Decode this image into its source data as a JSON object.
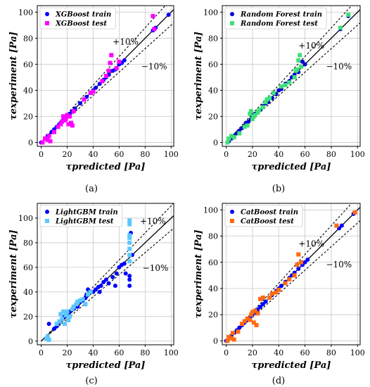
{
  "chart_data": [
    {
      "type": "scatter",
      "panel_label": "(a)",
      "xlabel": "τpredicted [Pa]",
      "ylabel": "τexperiment [Pa]",
      "xlim": [
        -3,
        102
      ],
      "ylim": [
        -3,
        105
      ],
      "xticks": [
        0,
        20,
        40,
        60,
        80,
        100
      ],
      "yticks": [
        0,
        20,
        40,
        60,
        80,
        100
      ],
      "grid": true,
      "legend_position": "top-left",
      "band_labels": [
        "+10%",
        "−10%"
      ],
      "series": [
        {
          "name": "XGBoost train",
          "marker": "circle",
          "color": "#0000ff",
          "points": [
            [
              0,
              0
            ],
            [
              3,
              3
            ],
            [
              5,
              5
            ],
            [
              8,
              8
            ],
            [
              10,
              10
            ],
            [
              12,
              12
            ],
            [
              14,
              14
            ],
            [
              15,
              15
            ],
            [
              17,
              17
            ],
            [
              18,
              18
            ],
            [
              20,
              20
            ],
            [
              22,
              22
            ],
            [
              24,
              24
            ],
            [
              26,
              26
            ],
            [
              30,
              30
            ],
            [
              33,
              33
            ],
            [
              35,
              35
            ],
            [
              38,
              38
            ],
            [
              40,
              40
            ],
            [
              42,
              42
            ],
            [
              45,
              45
            ],
            [
              48,
              48
            ],
            [
              50,
              50
            ],
            [
              52,
              52
            ],
            [
              55,
              55
            ],
            [
              57,
              56
            ],
            [
              60,
              60
            ],
            [
              62,
              61
            ],
            [
              64,
              63
            ],
            [
              86,
              86
            ],
            [
              88,
              88
            ],
            [
              98,
              98
            ]
          ]
        },
        {
          "name": "XGBoost test",
          "marker": "square",
          "color": "#ff00ff",
          "points": [
            [
              1,
              0
            ],
            [
              3,
              3
            ],
            [
              5,
              2
            ],
            [
              6,
              5
            ],
            [
              7,
              1
            ],
            [
              10,
              8
            ],
            [
              13,
              12
            ],
            [
              15,
              14
            ],
            [
              16,
              16
            ],
            [
              17,
              20
            ],
            [
              18,
              17
            ],
            [
              19,
              18
            ],
            [
              20,
              21
            ],
            [
              21,
              14
            ],
            [
              22,
              20
            ],
            [
              23,
              15
            ],
            [
              24,
              13
            ],
            [
              25,
              24
            ],
            [
              33,
              33
            ],
            [
              38,
              38
            ],
            [
              40,
              39
            ],
            [
              47,
              47
            ],
            [
              50,
              51
            ],
            [
              52,
              55
            ],
            [
              53,
              61
            ],
            [
              54,
              67
            ],
            [
              58,
              57
            ],
            [
              60,
              62
            ],
            [
              86,
              97
            ],
            [
              87,
              87
            ]
          ]
        }
      ]
    },
    {
      "type": "scatter",
      "panel_label": "(b)",
      "xlabel": "τpredicted [Pa]",
      "ylabel": "τexperiment [Pa]",
      "xlim": [
        -3,
        102
      ],
      "ylim": [
        -3,
        105
      ],
      "xticks": [
        0,
        20,
        40,
        60,
        80,
        100
      ],
      "yticks": [
        0,
        20,
        40,
        60,
        80,
        100
      ],
      "grid": true,
      "legend_position": "top-left",
      "band_labels": [
        "+10%",
        "−10%"
      ],
      "series": [
        {
          "name": "Random Forest train",
          "marker": "circle",
          "color": "#0000cd",
          "points": [
            [
              2,
              1
            ],
            [
              4,
              3
            ],
            [
              6,
              5
            ],
            [
              8,
              7
            ],
            [
              10,
              9
            ],
            [
              12,
              11
            ],
            [
              14,
              13
            ],
            [
              15,
              15
            ],
            [
              17,
              16
            ],
            [
              19,
              18
            ],
            [
              20,
              21
            ],
            [
              22,
              22
            ],
            [
              24,
              23
            ],
            [
              26,
              25
            ],
            [
              28,
              28
            ],
            [
              30,
              30
            ],
            [
              32,
              31
            ],
            [
              35,
              34
            ],
            [
              38,
              37
            ],
            [
              40,
              40
            ],
            [
              42,
              41
            ],
            [
              45,
              45
            ],
            [
              48,
              47
            ],
            [
              50,
              50
            ],
            [
              52,
              52
            ],
            [
              55,
              54
            ],
            [
              57,
              58
            ],
            [
              58,
              62
            ],
            [
              60,
              60
            ],
            [
              87,
              87
            ],
            [
              93,
              97
            ]
          ]
        },
        {
          "name": "Random Forest test",
          "marker": "square",
          "color": "#3ee07a",
          "points": [
            [
              1,
              0
            ],
            [
              2,
              3
            ],
            [
              4,
              5
            ],
            [
              6,
              4
            ],
            [
              10,
              7
            ],
            [
              14,
              12
            ],
            [
              16,
              13
            ],
            [
              18,
              22
            ],
            [
              19,
              24
            ],
            [
              20,
              18
            ],
            [
              21,
              20
            ],
            [
              22,
              21
            ],
            [
              24,
              23
            ],
            [
              25,
              25
            ],
            [
              28,
              27
            ],
            [
              30,
              31
            ],
            [
              31,
              33
            ],
            [
              33,
              34
            ],
            [
              36,
              38
            ],
            [
              42,
              43
            ],
            [
              45,
              44
            ],
            [
              48,
              46
            ],
            [
              52,
              50
            ],
            [
              53,
              55
            ],
            [
              54,
              56
            ],
            [
              55,
              63
            ],
            [
              56,
              67
            ],
            [
              57,
              58
            ],
            [
              87,
              88
            ],
            [
              93,
              98
            ]
          ]
        }
      ]
    },
    {
      "type": "scatter",
      "panel_label": "(c)",
      "xlabel": "τpredicted [Pa]",
      "ylabel": "τexperiment [Pa]",
      "xlim": [
        -3,
        102
      ],
      "ylim": [
        -3,
        112
      ],
      "xticks": [
        0,
        20,
        40,
        60,
        80,
        100
      ],
      "yticks": [
        0,
        20,
        40,
        60,
        80,
        100
      ],
      "grid": true,
      "legend_position": "top-left",
      "band_labels": [
        "+10%",
        "−10%"
      ],
      "series": [
        {
          "name": "LightGBM train",
          "marker": "circle",
          "color": "#0000ff",
          "points": [
            [
              5,
              3
            ],
            [
              6,
              14
            ],
            [
              10,
              10
            ],
            [
              12,
              12
            ],
            [
              14,
              15
            ],
            [
              18,
              20
            ],
            [
              20,
              22
            ],
            [
              22,
              24
            ],
            [
              25,
              26
            ],
            [
              28,
              28
            ],
            [
              30,
              32
            ],
            [
              32,
              33
            ],
            [
              34,
              35
            ],
            [
              35,
              38
            ],
            [
              36,
              42
            ],
            [
              38,
              40
            ],
            [
              40,
              40
            ],
            [
              42,
              42
            ],
            [
              44,
              44
            ],
            [
              45,
              40
            ],
            [
              46,
              45
            ],
            [
              48,
              48
            ],
            [
              50,
              50
            ],
            [
              52,
              47
            ],
            [
              55,
              52
            ],
            [
              57,
              45
            ],
            [
              58,
              55
            ],
            [
              60,
              60
            ],
            [
              62,
              62
            ],
            [
              64,
              63
            ],
            [
              65,
              55
            ],
            [
              68,
              53
            ],
            [
              68,
              50
            ],
            [
              68,
              45
            ],
            [
              69,
              88
            ],
            [
              70,
              70
            ]
          ]
        },
        {
          "name": "LightGBM test",
          "marker": "square",
          "color": "#5bc8ff",
          "points": [
            [
              4,
              2
            ],
            [
              5,
              4
            ],
            [
              6,
              1
            ],
            [
              12,
              14
            ],
            [
              14,
              16
            ],
            [
              15,
              22
            ],
            [
              16,
              18
            ],
            [
              17,
              24
            ],
            [
              18,
              14
            ],
            [
              19,
              21
            ],
            [
              20,
              24
            ],
            [
              21,
              17
            ],
            [
              22,
              20
            ],
            [
              24,
              26
            ],
            [
              25,
              28
            ],
            [
              27,
              30
            ],
            [
              28,
              32
            ],
            [
              30,
              33
            ],
            [
              32,
              34
            ],
            [
              34,
              30
            ],
            [
              36,
              38
            ],
            [
              38,
              40
            ],
            [
              68,
              65
            ],
            [
              68,
              70
            ],
            [
              68,
              75
            ],
            [
              68,
              80
            ],
            [
              68,
              84
            ],
            [
              68,
              86
            ],
            [
              68,
              95
            ],
            [
              68,
              98
            ]
          ]
        }
      ]
    },
    {
      "type": "scatter",
      "panel_label": "(d)",
      "xlabel": "τpredicted [Pa]",
      "ylabel": "τexperiment [Pa]",
      "xlim": [
        -3,
        102
      ],
      "ylim": [
        -3,
        105
      ],
      "xticks": [
        0,
        20,
        40,
        60,
        80,
        100
      ],
      "yticks": [
        0,
        20,
        40,
        60,
        80,
        100
      ],
      "grid": true,
      "legend_position": "top-left",
      "band_labels": [
        "+10%",
        "−10%"
      ],
      "series": [
        {
          "name": "CatBoost train",
          "marker": "circle",
          "color": "#0000ff",
          "points": [
            [
              0,
              0
            ],
            [
              2,
              2
            ],
            [
              4,
              4
            ],
            [
              6,
              6
            ],
            [
              8,
              8
            ],
            [
              10,
              10
            ],
            [
              12,
              12
            ],
            [
              14,
              14
            ],
            [
              16,
              16
            ],
            [
              18,
              18
            ],
            [
              20,
              20
            ],
            [
              22,
              22
            ],
            [
              24,
              24
            ],
            [
              26,
              26
            ],
            [
              28,
              28
            ],
            [
              30,
              30
            ],
            [
              33,
              33
            ],
            [
              35,
              35
            ],
            [
              38,
              38
            ],
            [
              40,
              40
            ],
            [
              42,
              42
            ],
            [
              45,
              45
            ],
            [
              48,
              48
            ],
            [
              50,
              50
            ],
            [
              52,
              52
            ],
            [
              55,
              55
            ],
            [
              58,
              58
            ],
            [
              60,
              60
            ],
            [
              62,
              62
            ],
            [
              86,
              86
            ],
            [
              88,
              88
            ],
            [
              97,
              97
            ]
          ]
        },
        {
          "name": "CatBoost test",
          "marker": "square",
          "color": "#ff6a10",
          "points": [
            [
              1,
              0
            ],
            [
              2,
              3
            ],
            [
              4,
              2
            ],
            [
              5,
              6
            ],
            [
              6,
              1
            ],
            [
              9,
              7
            ],
            [
              12,
              13
            ],
            [
              14,
              15
            ],
            [
              16,
              17
            ],
            [
              18,
              16
            ],
            [
              19,
              20
            ],
            [
              20,
              22
            ],
            [
              21,
              14
            ],
            [
              22,
              23
            ],
            [
              23,
              12
            ],
            [
              24,
              21
            ],
            [
              26,
              32
            ],
            [
              28,
              33
            ],
            [
              33,
              33
            ],
            [
              35,
              36
            ],
            [
              38,
              37
            ],
            [
              40,
              39
            ],
            [
              45,
              44
            ],
            [
              48,
              47
            ],
            [
              52,
              50
            ],
            [
              54,
              58
            ],
            [
              55,
              66
            ],
            [
              57,
              60
            ],
            [
              84,
              88
            ],
            [
              98,
              98
            ]
          ]
        }
      ]
    }
  ]
}
